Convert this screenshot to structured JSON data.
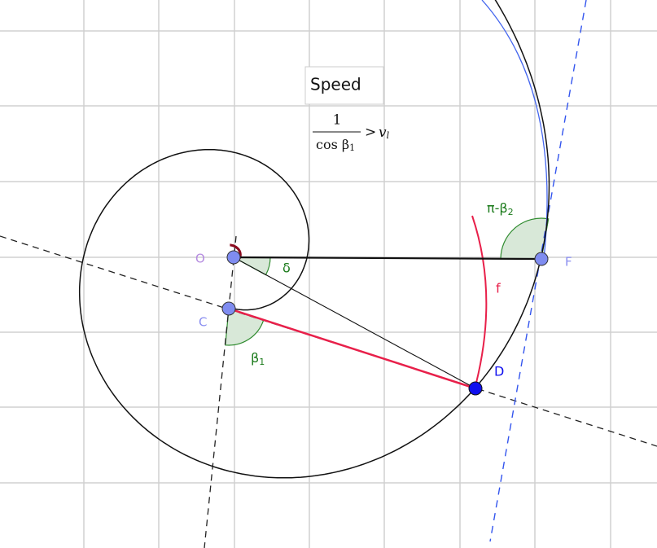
{
  "title_box": {
    "text": "Speed"
  },
  "formula": {
    "numerator": "1",
    "denominator": "cos β",
    "denominator_subscript": "1",
    "relation": ">",
    "rhs": "v",
    "rhs_subscript": "l"
  },
  "points": [
    {
      "label": "O"
    },
    {
      "label": "C"
    },
    {
      "label": "D"
    },
    {
      "label": "F"
    }
  ],
  "angles": [
    {
      "label": "δ"
    },
    {
      "label": "β",
      "subscript": "1"
    },
    {
      "label": "π-β",
      "subscript": "2"
    }
  ],
  "curve_label": "f"
}
